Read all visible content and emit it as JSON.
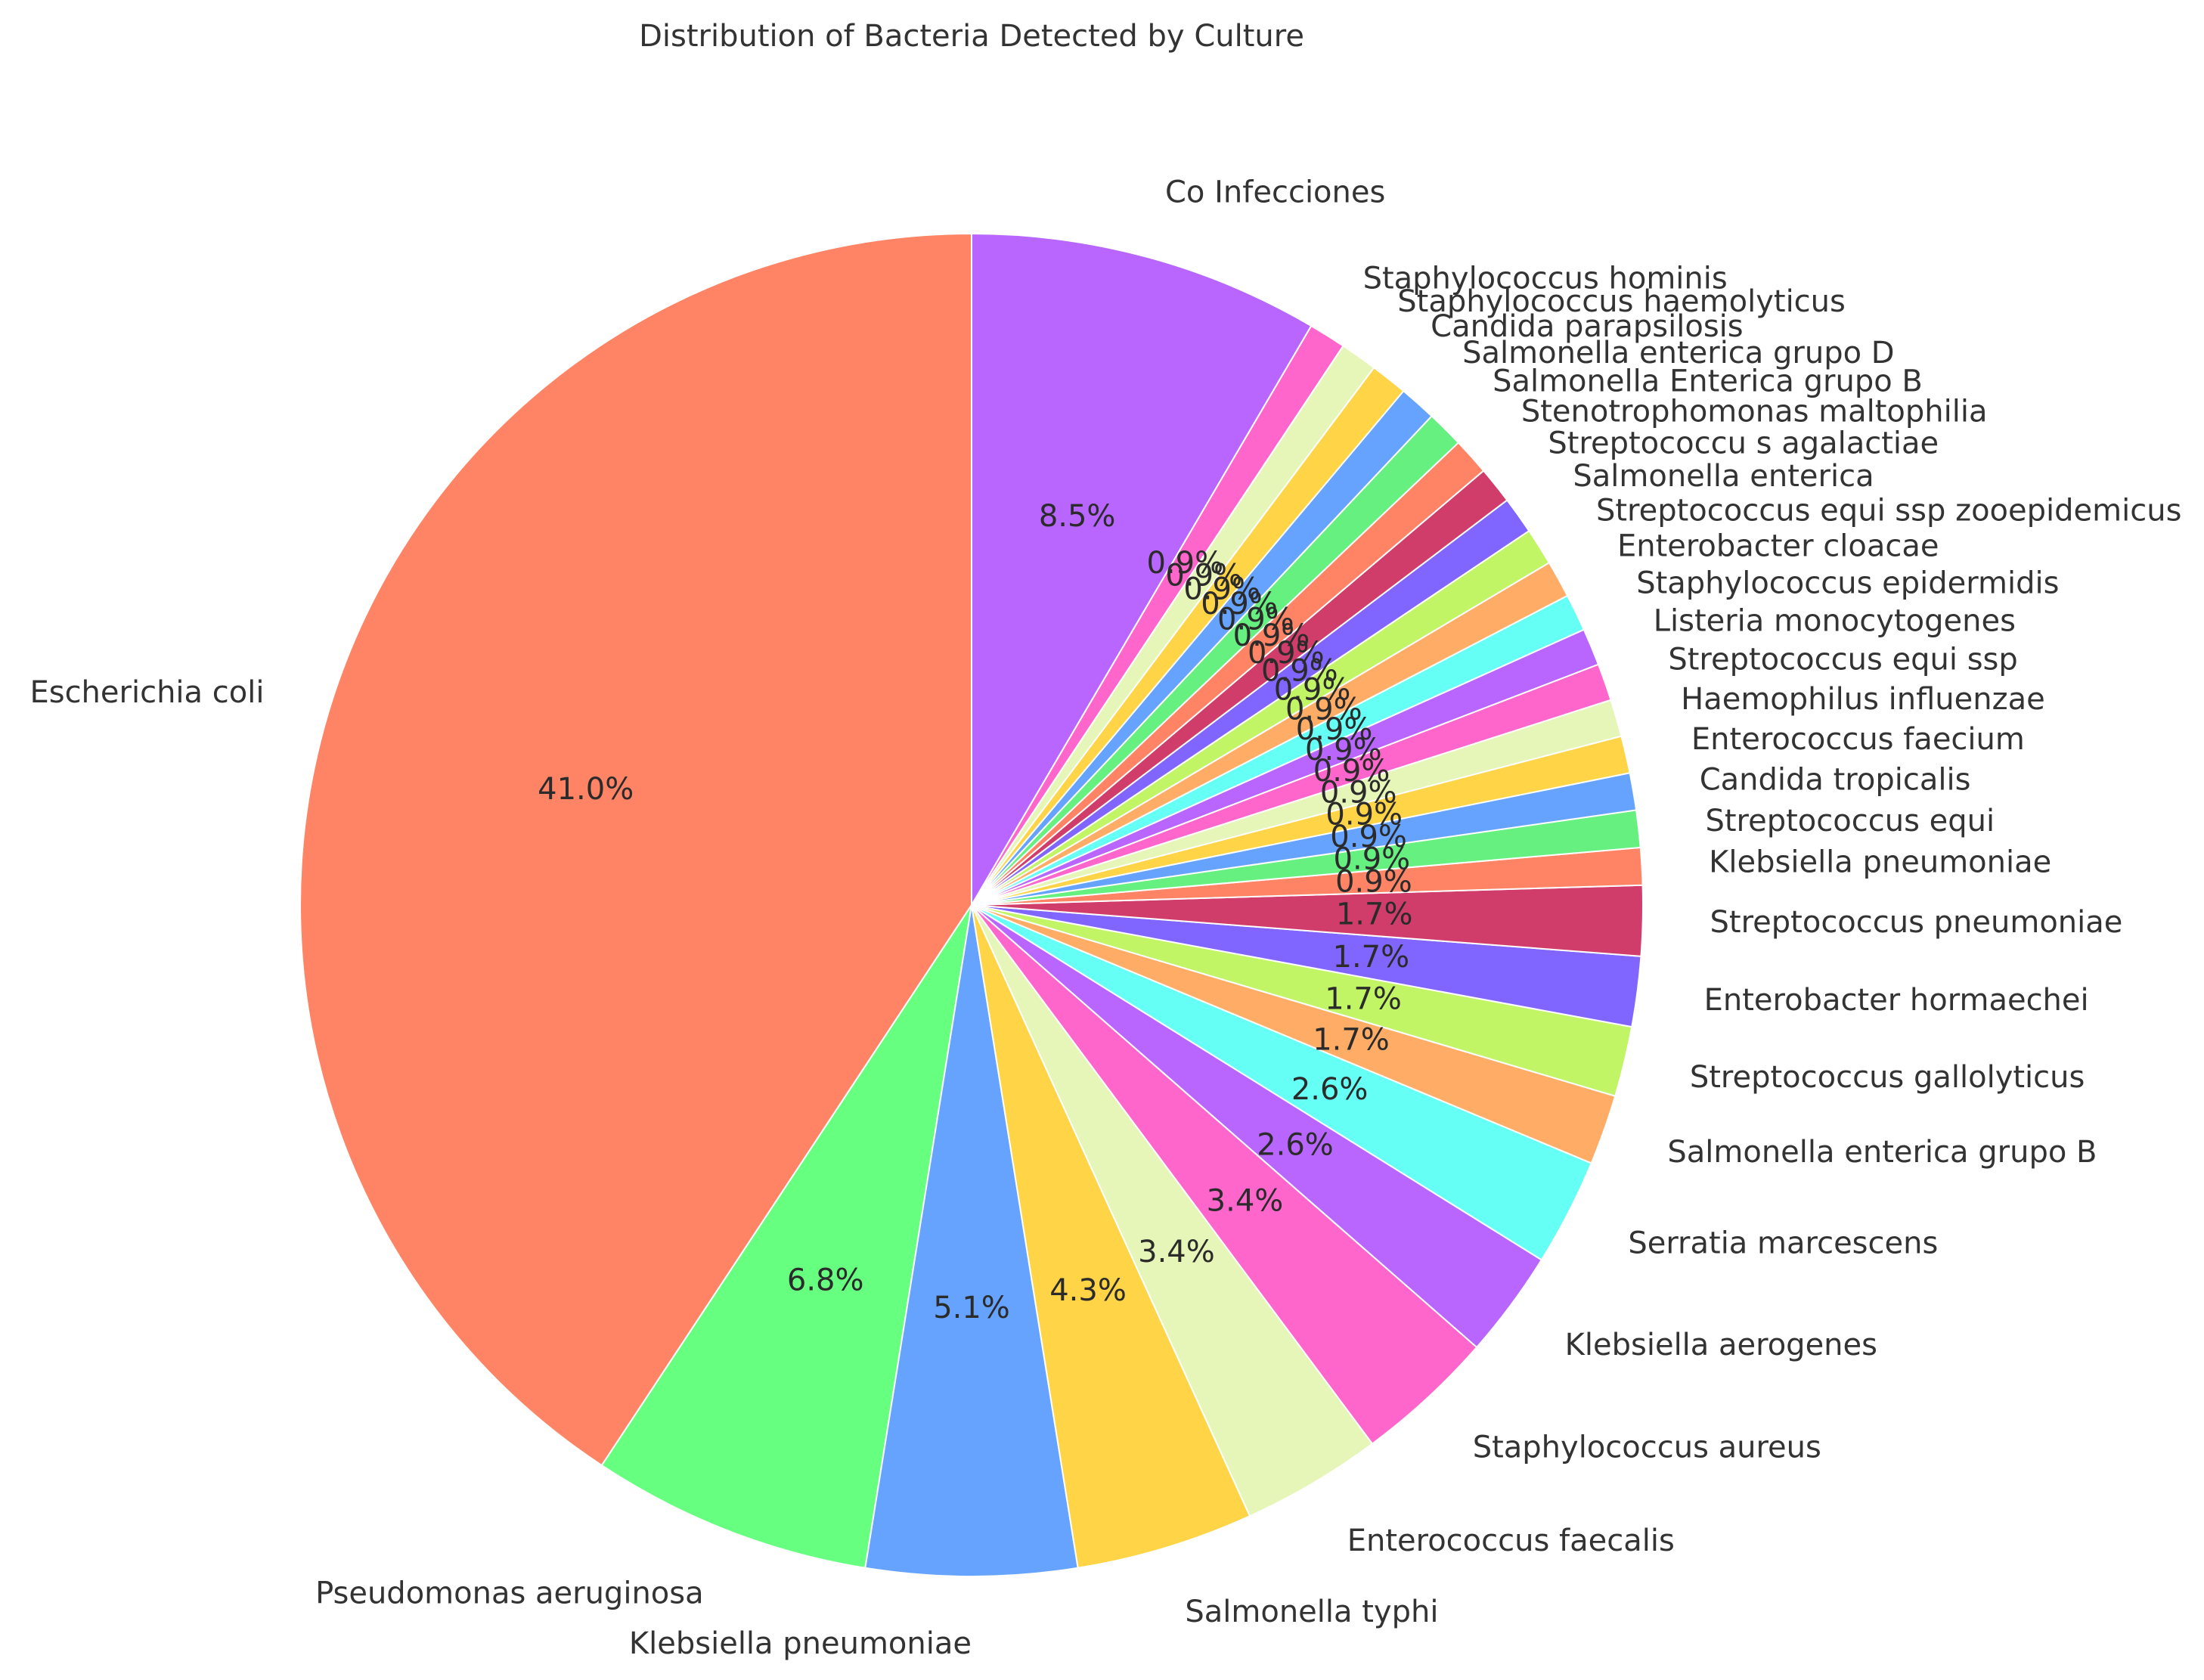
{
  "chart_data": {
    "type": "pie",
    "title": "Distribution of Bacteria Detected by Culture",
    "start_angle_deg": 90,
    "direction": "counterclockwise",
    "autopct_format": "{:.1f}%",
    "slices": [
      {
        "label": "Escherichia coli",
        "value": 41.0,
        "color": "#FF8466"
      },
      {
        "label": "Pseudomonas aeruginosa",
        "value": 6.8,
        "color": "#66FF80"
      },
      {
        "label": "Klebsiella pneumoniae",
        "value": 5.1,
        "color": "#66A3FF"
      },
      {
        "label": "Salmonella typhi",
        "value": 4.3,
        "color": "#FFD447"
      },
      {
        "label": "Enterococcus faecalis",
        "value": 3.4,
        "color": "#E6F5B8"
      },
      {
        "label": "Staphylococcus aureus",
        "value": 3.4,
        "color": "#FF66CC"
      },
      {
        "label": "Klebsiella aerogenes",
        "value": 2.6,
        "color": "#B866FF"
      },
      {
        "label": "Serratia marcescens",
        "value": 2.6,
        "color": "#66FFF5"
      },
      {
        "label": "Salmonella enterica grupo B",
        "value": 1.7,
        "color": "#FFAD66"
      },
      {
        "label": "Streptococcus gallolyticus",
        "value": 1.7,
        "color": "#C2F566"
      },
      {
        "label": "Enterobacter hormaechei",
        "value": 1.7,
        "color": "#8066FF"
      },
      {
        "label": "Streptococcus pneumoniae",
        "value": 1.7,
        "color": "#D13D6B"
      },
      {
        "label": "Klebsiella pneumoniae",
        "value": 0.9,
        "color": "#FF8466"
      },
      {
        "label": "Streptococcus equi",
        "value": 0.9,
        "color": "#66F080"
      },
      {
        "label": "Candida tropicalis",
        "value": 0.9,
        "color": "#66A3FF"
      },
      {
        "label": "Enterococcus faecium",
        "value": 0.9,
        "color": "#FFD447"
      },
      {
        "label": "Haemophilus influenzae",
        "value": 0.9,
        "color": "#E6F5B8"
      },
      {
        "label": "Streptococcus equi ssp",
        "value": 0.9,
        "color": "#FF66CC"
      },
      {
        "label": "Listeria monocytogenes",
        "value": 0.9,
        "color": "#B866FF"
      },
      {
        "label": "Staphylococcus epidermidis",
        "value": 0.9,
        "color": "#66FFF5"
      },
      {
        "label": "Enterobacter cloacae",
        "value": 0.9,
        "color": "#FFAD66"
      },
      {
        "label": "Streptococcus equi ssp zooepidemicus",
        "value": 0.9,
        "color": "#C2F566"
      },
      {
        "label": "Salmonella enterica",
        "value": 0.9,
        "color": "#8066FF"
      },
      {
        "label": "Streptococcu s agalactiae",
        "value": 0.9,
        "color": "#D13D6B"
      },
      {
        "label": "Stenotrophomonas maltophilia",
        "value": 0.9,
        "color": "#FF8466"
      },
      {
        "label": "Salmonella Enterica grupo B",
        "value": 0.9,
        "color": "#66F080"
      },
      {
        "label": "Salmonella enterica grupo D",
        "value": 0.9,
        "color": "#66A3FF"
      },
      {
        "label": "Candida parapsilosis",
        "value": 0.9,
        "color": "#FFD447"
      },
      {
        "label": "Staphylococcus haemolyticus",
        "value": 0.9,
        "color": "#E6F5B8"
      },
      {
        "label": "Staphylococcus hominis",
        "value": 0.9,
        "color": "#FF66CC"
      },
      {
        "label": "Co Infecciones",
        "value": 8.5,
        "color": "#B866FF"
      }
    ]
  }
}
